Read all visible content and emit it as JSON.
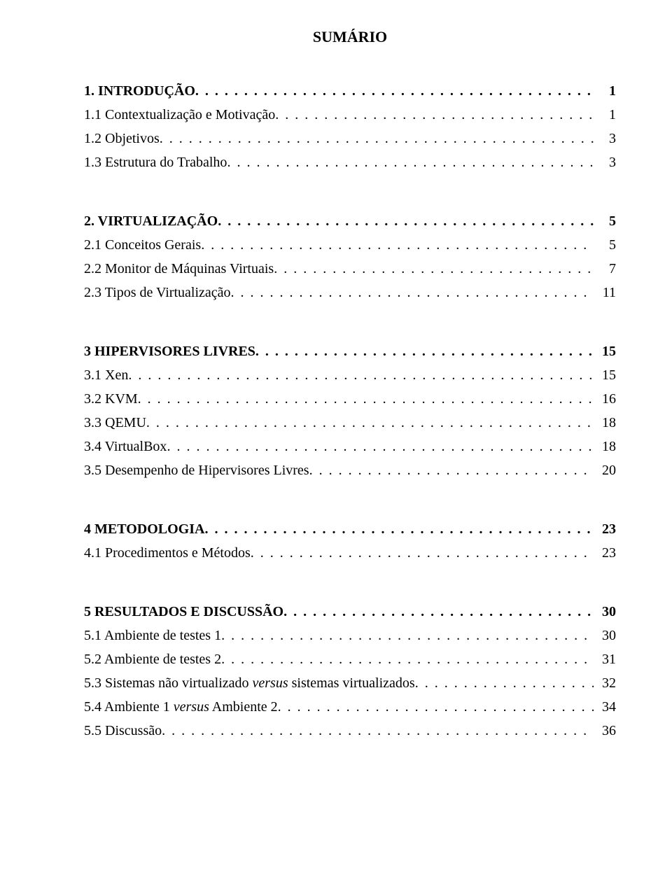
{
  "title": "SUMÁRIO",
  "text_color": "#000000",
  "background_color": "#ffffff",
  "title_fontsize": 22,
  "body_fontsize": 20,
  "font_family": "Times New Roman",
  "groups": [
    {
      "entries": [
        {
          "label": "1. INTRODUÇÃO",
          "page": "1",
          "bold": true
        },
        {
          "label": "1.1 Contextualização e Motivação",
          "page": "1",
          "bold": false
        },
        {
          "label": "1.2 Objetivos",
          "page": "3",
          "bold": false
        },
        {
          "label": "1.3 Estrutura do Trabalho",
          "page": "3",
          "bold": false
        }
      ]
    },
    {
      "entries": [
        {
          "label": "2. VIRTUALIZAÇÃO",
          "page": "5",
          "bold": true
        },
        {
          "label": "2.1 Conceitos Gerais",
          "page": "5",
          "bold": false
        },
        {
          "label": "2.2 Monitor de Máquinas Virtuais",
          "page": "7",
          "bold": false
        },
        {
          "label": "2.3 Tipos de Virtualização",
          "page": "11",
          "bold": false
        }
      ]
    },
    {
      "entries": [
        {
          "label": "3 HIPERVISORES LIVRES",
          "page": "15",
          "bold": true
        },
        {
          "label": "3.1 Xen",
          "page": "15",
          "bold": false
        },
        {
          "label": "3.2 KVM",
          "page": "16",
          "bold": false
        },
        {
          "label": "3.3 QEMU",
          "page": "18",
          "bold": false
        },
        {
          "label": "3.4 VirtualBox",
          "page": "18",
          "bold": false
        },
        {
          "label": "3.5 Desempenho de Hipervisores Livres",
          "page": "20",
          "bold": false
        }
      ]
    },
    {
      "entries": [
        {
          "label": "4 METODOLOGIA",
          "page": "23",
          "bold": true
        },
        {
          "label": "4.1 Procedimentos e Métodos",
          "page": "23",
          "bold": false
        }
      ]
    },
    {
      "entries": [
        {
          "label": "5 RESULTADOS E DISCUSSÃO",
          "page": "30",
          "bold": true
        },
        {
          "label": "5.1 Ambiente de testes 1",
          "page": "30",
          "bold": false
        },
        {
          "label": "5.2 Ambiente de testes 2",
          "page": "31",
          "bold": false
        },
        {
          "label": "5.3 Sistemas não virtualizado versus sistemas virtualizados",
          "page": "32",
          "bold": false,
          "italic_part": "versus"
        },
        {
          "label": "5.4 Ambiente 1 versus Ambiente 2",
          "page": "34",
          "bold": false,
          "italic_part": "versus"
        },
        {
          "label": "5.5 Discussão",
          "page": "36",
          "bold": false
        }
      ]
    }
  ]
}
